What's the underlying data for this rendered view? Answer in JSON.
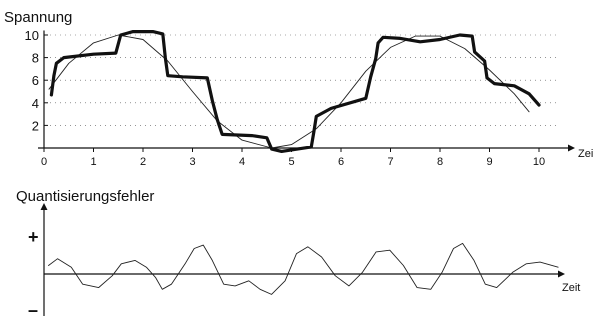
{
  "chart_data": [
    {
      "type": "line",
      "title": "Spannung",
      "xlabel": "Zei",
      "ylabel": "",
      "xlim": [
        0,
        10.5
      ],
      "ylim": [
        0,
        10
      ],
      "x_ticks": [
        "0",
        "1",
        "2",
        "3",
        "4",
        "5",
        "6",
        "7",
        "8",
        "9",
        "10"
      ],
      "y_ticks": [
        "2",
        "4",
        "6",
        "8",
        "10"
      ],
      "grid": "dotted",
      "series": [
        {
          "style": "thin",
          "color": "#222222",
          "points": [
            [
              0.1,
              5.2
            ],
            [
              0.5,
              7.5
            ],
            [
              1.0,
              9.3
            ],
            [
              1.5,
              10.0
            ],
            [
              2.0,
              9.6
            ],
            [
              2.5,
              7.7
            ],
            [
              3.0,
              5.0
            ],
            [
              3.5,
              2.4
            ],
            [
              4.0,
              0.7
            ],
            [
              4.6,
              0.0
            ],
            [
              5.0,
              0.3
            ],
            [
              5.5,
              1.7
            ],
            [
              6.0,
              4.0
            ],
            [
              6.5,
              6.8
            ],
            [
              7.0,
              8.9
            ],
            [
              7.5,
              9.9
            ],
            [
              8.0,
              9.9
            ],
            [
              8.5,
              8.8
            ],
            [
              9.0,
              6.9
            ],
            [
              9.5,
              4.8
            ],
            [
              9.8,
              3.2
            ]
          ]
        },
        {
          "style": "thick",
          "color": "#111111",
          "points": [
            [
              0.15,
              4.7
            ],
            [
              0.2,
              6.4
            ],
            [
              0.25,
              7.5
            ],
            [
              0.4,
              8.0
            ],
            [
              1.0,
              8.3
            ],
            [
              1.45,
              8.4
            ],
            [
              1.55,
              10.0
            ],
            [
              1.8,
              10.3
            ],
            [
              2.2,
              10.3
            ],
            [
              2.4,
              10.1
            ],
            [
              2.45,
              8.0
            ],
            [
              2.5,
              6.4
            ],
            [
              2.8,
              6.3
            ],
            [
              3.3,
              6.2
            ],
            [
              3.4,
              4.2
            ],
            [
              3.5,
              2.5
            ],
            [
              3.6,
              1.2
            ],
            [
              4.2,
              1.1
            ],
            [
              4.5,
              0.9
            ],
            [
              4.6,
              -0.1
            ],
            [
              4.8,
              -0.3
            ],
            [
              5.4,
              0.1
            ],
            [
              5.45,
              1.4
            ],
            [
              5.5,
              2.8
            ],
            [
              5.8,
              3.5
            ],
            [
              6.5,
              4.4
            ],
            [
              6.6,
              6.3
            ],
            [
              6.7,
              7.9
            ],
            [
              6.75,
              9.3
            ],
            [
              6.85,
              9.8
            ],
            [
              7.2,
              9.7
            ],
            [
              7.6,
              9.4
            ],
            [
              8.0,
              9.6
            ],
            [
              8.4,
              10.0
            ],
            [
              8.65,
              9.9
            ],
            [
              8.7,
              8.5
            ],
            [
              8.9,
              7.7
            ],
            [
              8.95,
              6.2
            ],
            [
              9.1,
              5.7
            ],
            [
              9.5,
              5.5
            ],
            [
              9.8,
              4.8
            ],
            [
              10.0,
              3.8
            ]
          ]
        }
      ]
    },
    {
      "type": "line",
      "title": "Quantisierungsfehler",
      "xlabel": "Zeit",
      "ylabel": "",
      "y_signs": [
        "+",
        "–"
      ],
      "ylim": [
        -1,
        1
      ],
      "series": [
        {
          "style": "thin",
          "color": "#222222",
          "points": [
            [
              0.1,
              0.25
            ],
            [
              0.3,
              0.45
            ],
            [
              0.6,
              0.2
            ],
            [
              0.85,
              -0.3
            ],
            [
              1.2,
              -0.4
            ],
            [
              1.5,
              -0.05
            ],
            [
              1.7,
              0.3
            ],
            [
              2.0,
              0.4
            ],
            [
              2.25,
              0.2
            ],
            [
              2.45,
              -0.1
            ],
            [
              2.6,
              -0.45
            ],
            [
              2.8,
              -0.3
            ],
            [
              3.1,
              0.3
            ],
            [
              3.3,
              0.75
            ],
            [
              3.5,
              0.85
            ],
            [
              3.7,
              0.4
            ],
            [
              3.95,
              -0.3
            ],
            [
              4.2,
              -0.35
            ],
            [
              4.5,
              -0.2
            ],
            [
              4.75,
              -0.45
            ],
            [
              5.0,
              -0.6
            ],
            [
              5.3,
              -0.2
            ],
            [
              5.55,
              0.6
            ],
            [
              5.8,
              0.8
            ],
            [
              6.1,
              0.5
            ],
            [
              6.4,
              -0.05
            ],
            [
              6.7,
              -0.35
            ],
            [
              7.0,
              0.05
            ],
            [
              7.3,
              0.65
            ],
            [
              7.6,
              0.7
            ],
            [
              7.9,
              0.25
            ],
            [
              8.2,
              -0.4
            ],
            [
              8.5,
              -0.45
            ],
            [
              8.75,
              0.05
            ],
            [
              9.0,
              0.75
            ],
            [
              9.2,
              0.9
            ],
            [
              9.45,
              0.4
            ],
            [
              9.7,
              -0.3
            ],
            [
              9.95,
              -0.4
            ],
            [
              10.3,
              0.05
            ],
            [
              10.6,
              0.3
            ],
            [
              10.9,
              0.35
            ],
            [
              11.3,
              0.2
            ]
          ]
        }
      ]
    }
  ]
}
